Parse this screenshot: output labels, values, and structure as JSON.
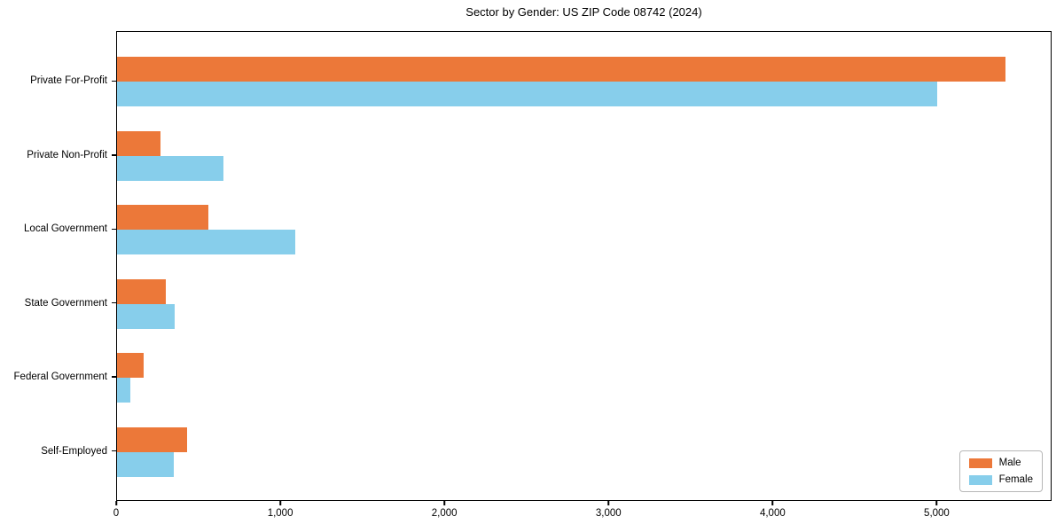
{
  "chart_data": {
    "type": "bar",
    "orientation": "horizontal",
    "title": "Sector by Gender: US ZIP Code 08742 (2024)",
    "categories": [
      "Private For-Profit",
      "Private Non-Profit",
      "Local Government",
      "State Government",
      "Federal Government",
      "Self-Employed"
    ],
    "series": [
      {
        "name": "Male",
        "color": "#EC7839",
        "values": [
          5425,
          265,
          555,
          300,
          165,
          425
        ]
      },
      {
        "name": "Female",
        "color": "#87CEEB",
        "values": [
          5005,
          650,
          1090,
          350,
          80,
          345
        ]
      }
    ],
    "xlim": [
      0,
      5700
    ],
    "xticks": [
      0,
      1000,
      2000,
      3000,
      4000,
      5000
    ],
    "xtick_labels": [
      "0",
      "1,000",
      "2,000",
      "3,000",
      "4,000",
      "5,000"
    ],
    "ylabel": "",
    "xlabel": "",
    "grid": false,
    "legend_position": "lower right",
    "colors": {
      "male": "#EC7839",
      "female": "#87CEEB",
      "axis": "#000000",
      "legend_border": "#b7b7b7"
    }
  }
}
